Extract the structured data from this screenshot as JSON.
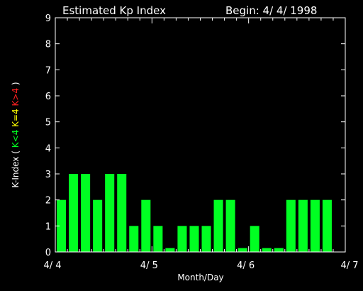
{
  "chart_data": {
    "type": "bar",
    "title": "Estimated Kp Index",
    "subtitle": "Begin: 4/ 4/ 1998",
    "xlabel": "Month/Day",
    "ylabel": {
      "prefix": "K-Index (",
      "low": "K<4",
      "mid": "K=4",
      "high": "K>4",
      "suffix": ")"
    },
    "ylim": [
      0,
      9
    ],
    "yticks": [
      "0",
      "1",
      "2",
      "3",
      "4",
      "5",
      "6",
      "7",
      "8",
      "9"
    ],
    "xlim": [
      0,
      3
    ],
    "xticks": [
      {
        "label": "4/ 4",
        "x": 0
      },
      {
        "label": "4/ 5",
        "x": 1
      },
      {
        "label": "4/ 6",
        "x": 2
      },
      {
        "label": "4/ 7",
        "x": 3
      }
    ],
    "bar_interval_days": 0.125,
    "values": [
      2,
      3,
      3,
      2,
      3,
      3,
      1,
      2,
      1,
      0.15,
      1,
      1,
      1,
      2,
      2,
      0.15,
      1,
      0.15,
      0.15,
      2,
      2,
      2,
      2,
      0
    ],
    "colors": {
      "low": "#00ff22",
      "mid": "#ffff00",
      "high": "#ff2020",
      "axes": "#ffffff"
    }
  }
}
